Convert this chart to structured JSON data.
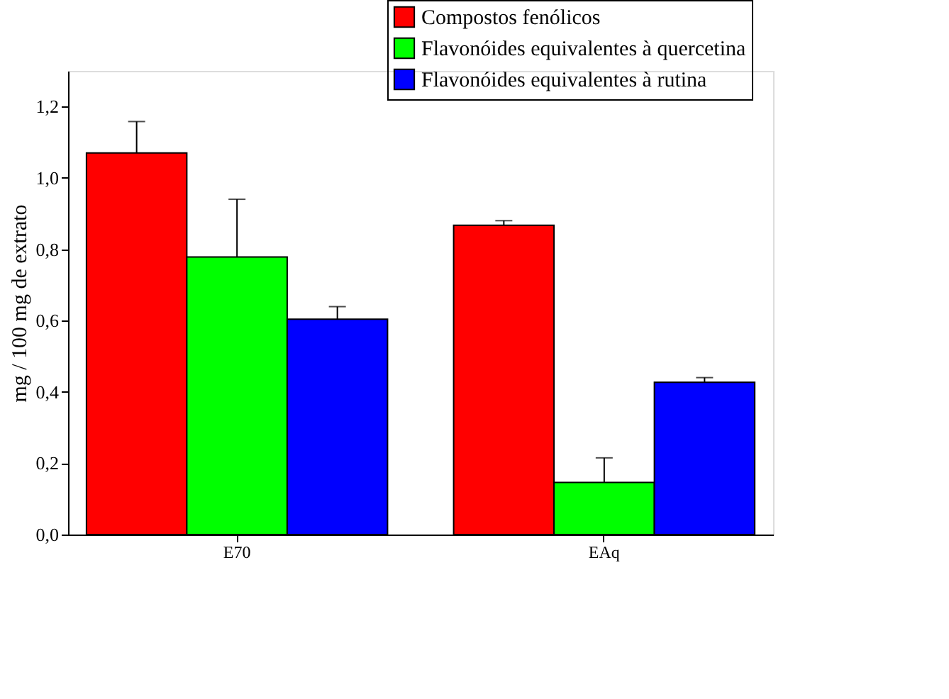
{
  "chart_data": {
    "type": "bar",
    "ylabel": "mg / 100 mg de extrato",
    "categories": [
      "E70",
      "EAq"
    ],
    "series": [
      {
        "name": "Compostos fenólicos",
        "color": "#ff0000",
        "values": [
          1.07,
          0.867
        ],
        "errors": [
          [
            1.07,
            1.158
          ],
          [
            0.867,
            0.88
          ]
        ]
      },
      {
        "name": "Flavonóides equivalentes à quercetina",
        "color": "#00ff00",
        "values": [
          0.778,
          0.146
        ],
        "errors": [
          [
            0.778,
            0.94
          ],
          [
            0.146,
            0.215
          ]
        ]
      },
      {
        "name": "Flavonóides equivalentes à rutina",
        "color": "#0000ff",
        "values": [
          0.604,
          0.427
        ],
        "errors": [
          [
            0.604,
            0.639
          ],
          [
            0.427,
            0.44
          ]
        ]
      }
    ],
    "ylim": [
      0,
      1.3
    ],
    "yticks": [
      {
        "value": 0,
        "label": "0,0"
      },
      {
        "value": 0.2,
        "label": "0,2"
      },
      {
        "value": 0.4,
        "label": "0,4"
      },
      {
        "value": 0.6,
        "label": "0,6"
      },
      {
        "value": 0.8,
        "label": "0,8"
      },
      {
        "value": 1.0,
        "label": "1,0"
      },
      {
        "value": 1.2,
        "label": "1,2"
      }
    ],
    "grid": false,
    "legend": "top right"
  }
}
